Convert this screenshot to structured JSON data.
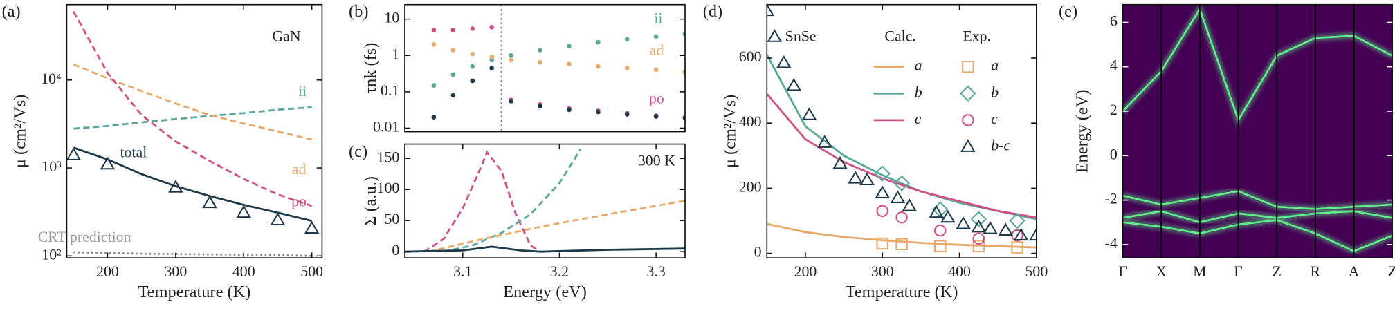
{
  "chart_data": [
    {
      "panel_label": "(a)",
      "type": "line",
      "xlabel": "Temperature (K)",
      "ylabel": "μ (cm²/Vs)",
      "log_y": true,
      "xlim": [
        140,
        515
      ],
      "ylim": [
        95,
        72000
      ],
      "xticks": [
        200,
        300,
        400,
        500
      ],
      "yticks": [
        {
          "value": 100,
          "label": "10²"
        },
        {
          "value": 1000,
          "label": "10³"
        },
        {
          "value": 10000,
          "label": "10⁴"
        }
      ],
      "x": [
        150,
        200,
        250,
        300,
        350,
        400,
        450,
        500
      ],
      "series": [
        {
          "color": "#5aa89a",
          "style": "dashed",
          "values": [
            2800,
            3000,
            3300,
            3600,
            3900,
            4200,
            4600,
            4900
          ]
        },
        {
          "color": "#e8a96a",
          "style": "dashed",
          "values": [
            15000,
            10500,
            7500,
            5400,
            4000,
            3200,
            2600,
            2100
          ]
        },
        {
          "color": "#cf4f86",
          "style": "dashed",
          "values": [
            60000,
            12000,
            4000,
            2000,
            1200,
            750,
            500,
            370
          ]
        },
        {
          "color": "#1e3a4a",
          "style": "solid",
          "values": [
            1700,
            1250,
            850,
            620,
            480,
            380,
            310,
            250
          ]
        },
        {
          "color": "#888888",
          "style": "dotted",
          "values": [
            110,
            108,
            106,
            105,
            104,
            103,
            102,
            100
          ]
        },
        {
          "color": "#1e3a4a",
          "style": "markers",
          "marker": "triangle",
          "x": [
            150,
            200,
            300,
            350,
            400,
            450,
            500
          ],
          "values": [
            1400,
            1100,
            600,
            400,
            310,
            255,
            205
          ]
        }
      ],
      "annotations": [
        {
          "text": "GaN",
          "color": "#222222"
        },
        {
          "text": "ii",
          "color": "#5aa89a"
        },
        {
          "text": "ad",
          "color": "#e8a96a"
        },
        {
          "text": "po",
          "color": "#cf4f86"
        },
        {
          "text": "total",
          "color": "#1e3a4a"
        },
        {
          "text": "CRT prediction",
          "color": "#999999"
        }
      ]
    },
    {
      "panel_label": "(b)",
      "type": "scatter",
      "ylabel": "τnk (fs)",
      "log_y": true,
      "xlim": [
        3.04,
        3.33
      ],
      "ylim": [
        0.008,
        25
      ],
      "yticks": [
        0.01,
        0.1,
        1,
        10
      ],
      "vline": 3.14,
      "x": [
        3.07,
        3.09,
        3.11,
        3.13,
        3.15,
        3.18,
        3.21,
        3.24,
        3.27,
        3.3,
        3.33
      ],
      "series": [
        {
          "color": "#5aa89a",
          "values": [
            0.15,
            0.3,
            0.5,
            0.75,
            1.0,
            1.4,
            1.8,
            2.3,
            2.8,
            3.3,
            3.9
          ]
        },
        {
          "color": "#e8a96a",
          "values": [
            2.0,
            1.4,
            1.1,
            0.9,
            0.75,
            0.65,
            0.58,
            0.5,
            0.45,
            0.4,
            0.35
          ]
        },
        {
          "color": "#cf4f86",
          "values": [
            5,
            5,
            5.5,
            6,
            0.06,
            0.045,
            0.035,
            0.03,
            0.026,
            0.022,
            0.02
          ]
        },
        {
          "color": "#1e3a4a",
          "values": [
            0.02,
            0.08,
            0.2,
            0.45,
            0.055,
            0.04,
            0.032,
            0.028,
            0.024,
            0.021,
            0.019
          ]
        }
      ],
      "annotations": [
        {
          "text": "ii",
          "color": "#5aa89a"
        },
        {
          "text": "ad",
          "color": "#e8a96a"
        },
        {
          "text": "po",
          "color": "#cf4f86"
        }
      ]
    },
    {
      "panel_label": "(c)",
      "type": "line",
      "xlabel": "Energy (eV)",
      "ylabel": "Σ (a.u.)",
      "xlim": [
        3.04,
        3.33
      ],
      "ylim": [
        -10,
        173
      ],
      "xticks": [
        3.1,
        3.2,
        3.3
      ],
      "yticks": [
        0,
        50,
        100,
        150
      ],
      "series": [
        {
          "color": "#cf4f86",
          "style": "dashed",
          "x": [
            3.06,
            3.08,
            3.1,
            3.12,
            3.125,
            3.14,
            3.155,
            3.17,
            3.18
          ],
          "values": [
            0,
            20,
            70,
            140,
            160,
            130,
            60,
            10,
            0
          ]
        },
        {
          "color": "#5aa89a",
          "style": "dashed",
          "x": [
            3.08,
            3.11,
            3.14,
            3.17,
            3.2,
            3.222
          ],
          "values": [
            0,
            10,
            30,
            60,
            110,
            165
          ]
        },
        {
          "color": "#e8a96a",
          "style": "dashed",
          "x": [
            3.065,
            3.12,
            3.18,
            3.25,
            3.33
          ],
          "values": [
            0,
            20,
            40,
            60,
            82
          ]
        },
        {
          "color": "#1e3a4a",
          "style": "solid",
          "x": [
            3.04,
            3.1,
            3.13,
            3.16,
            3.18,
            3.25,
            3.33
          ],
          "values": [
            0,
            2,
            8,
            2,
            0,
            3,
            5
          ]
        }
      ],
      "annotations": [
        {
          "text": "300 K",
          "color": "#222222"
        }
      ]
    },
    {
      "panel_label": "(d)",
      "type": "line",
      "xlabel": "Temperature (K)",
      "ylabel": "μ (cm²/Vs)",
      "xlim": [
        150,
        500
      ],
      "ylim": [
        -14,
        764
      ],
      "xticks": [
        200,
        300,
        400,
        500
      ],
      "yticks": [
        0,
        200,
        400,
        600
      ],
      "x": [
        150,
        200,
        250,
        300,
        350,
        400,
        450,
        500
      ],
      "legend_titles": [
        "Calc.",
        "Exp."
      ],
      "series": [
        {
          "name": "a",
          "group": 0,
          "color": "#e8a96a",
          "style": "solid",
          "values": [
            90,
            65,
            50,
            40,
            32,
            26,
            22,
            18
          ]
        },
        {
          "name": "b",
          "group": 0,
          "color": "#5aa89a",
          "style": "solid",
          "values": [
            610,
            390,
            300,
            240,
            190,
            155,
            130,
            105
          ]
        },
        {
          "name": "c",
          "group": 0,
          "color": "#cf4f86",
          "style": "solid",
          "values": [
            490,
            350,
            280,
            230,
            190,
            160,
            130,
            110
          ]
        },
        {
          "name": "a",
          "group": 1,
          "color": "#e8a96a",
          "style": "markers",
          "marker": "square",
          "x": [
            300,
            325,
            375,
            425,
            475
          ],
          "values": [
            30,
            28,
            22,
            22,
            18
          ]
        },
        {
          "name": "b",
          "group": 1,
          "color": "#5aa89a",
          "style": "markers",
          "marker": "diamond",
          "x": [
            300,
            325,
            375,
            425,
            475
          ],
          "values": [
            245,
            215,
            135,
            105,
            100
          ]
        },
        {
          "name": "c",
          "group": 1,
          "color": "#cf4f86",
          "style": "markers",
          "marker": "circle",
          "x": [
            300,
            325,
            375,
            425,
            475
          ],
          "values": [
            130,
            110,
            70,
            45,
            55
          ]
        },
        {
          "name": "b-c",
          "group": 1,
          "color": "#1e3a4a",
          "style": "markers",
          "marker": "triangle",
          "x": [
            150,
            160,
            172,
            185,
            205,
            225,
            245,
            265,
            280,
            300,
            320,
            335,
            370,
            385,
            405,
            425,
            440,
            460,
            480,
            500
          ],
          "values": [
            745,
            665,
            585,
            515,
            425,
            340,
            275,
            230,
            225,
            185,
            170,
            145,
            125,
            110,
            90,
            80,
            75,
            70,
            55,
            55
          ]
        }
      ],
      "annotations": [
        {
          "text": "SnSe",
          "color": "#222222"
        }
      ]
    },
    {
      "panel_label": "(e)",
      "type": "bands",
      "ylabel": "Energy (eV)",
      "background": "#440154",
      "categories": [
        "Γ",
        "X",
        "M",
        "Γ",
        "Z",
        "R",
        "A",
        "Z"
      ],
      "ylim": [
        -4.6,
        6.8
      ],
      "yticks": [
        -4,
        -2,
        0,
        2,
        4,
        6
      ],
      "series": [
        {
          "color": "#5ef08a",
          "values": [
            2,
            3.8,
            6.6,
            1.6,
            4.5,
            5.3,
            5.4,
            4.5
          ]
        },
        {
          "color": "#5ef08a",
          "values": [
            -1.8,
            -2.2,
            -1.9,
            -1.6,
            -2.3,
            -2.4,
            -2.3,
            -2.2
          ]
        },
        {
          "color": "#5ef08a",
          "values": [
            -2.8,
            -2.5,
            -3.0,
            -2.6,
            -2.8,
            -2.6,
            -2.5,
            -2.8
          ]
        },
        {
          "color": "#5ef08a",
          "values": [
            -3.0,
            -3.2,
            -3.5,
            -3.1,
            -2.9,
            -3.5,
            -4.3,
            -3.6
          ]
        }
      ]
    }
  ]
}
